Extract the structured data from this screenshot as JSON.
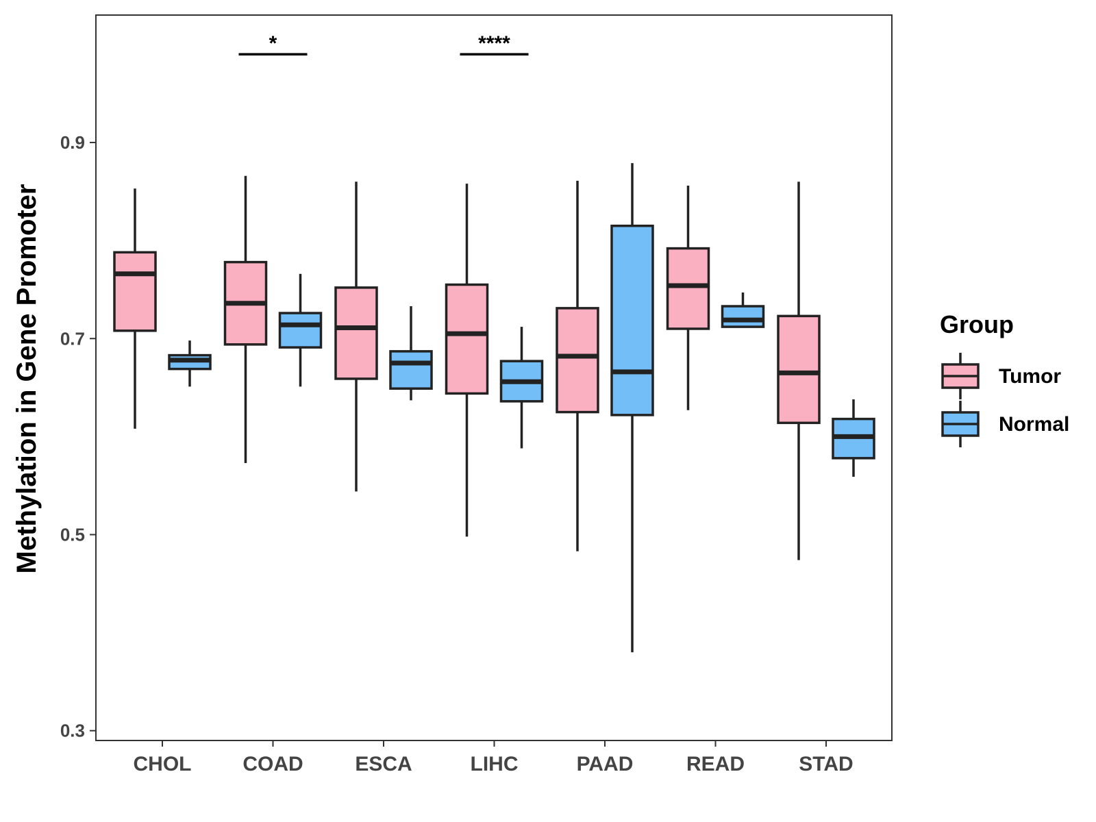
{
  "chart_data": {
    "type": "boxplot",
    "title": "",
    "xlabel": "",
    "ylabel": "Methylation in Gene Promoter",
    "ylim": [
      0.29,
      1.03
    ],
    "yticks": [
      0.3,
      0.5,
      0.7,
      0.9
    ],
    "ytick_labels": [
      "0.3",
      "0.5",
      "0.7",
      "0.9"
    ],
    "categories": [
      "CHOL",
      "COAD",
      "ESCA",
      "LIHC",
      "PAAD",
      "READ",
      "STAD"
    ],
    "legend": {
      "title": "Group",
      "position": "right",
      "entries": [
        {
          "name": "Tumor",
          "color": "#fbb0c1"
        },
        {
          "name": "Normal",
          "color": "#74bef7"
        }
      ]
    },
    "series": [
      {
        "name": "Tumor",
        "color": "#fbb0c1",
        "boxes": [
          {
            "min": 0.608,
            "q1": 0.708,
            "median": 0.766,
            "q3": 0.788,
            "max": 0.853
          },
          {
            "min": 0.573,
            "q1": 0.694,
            "median": 0.736,
            "q3": 0.778,
            "max": 0.866
          },
          {
            "min": 0.544,
            "q1": 0.659,
            "median": 0.711,
            "q3": 0.752,
            "max": 0.86
          },
          {
            "min": 0.498,
            "q1": 0.644,
            "median": 0.705,
            "q3": 0.755,
            "max": 0.858
          },
          {
            "min": 0.483,
            "q1": 0.625,
            "median": 0.682,
            "q3": 0.731,
            "max": 0.861
          },
          {
            "min": 0.627,
            "q1": 0.71,
            "median": 0.754,
            "q3": 0.792,
            "max": 0.856
          },
          {
            "min": 0.474,
            "q1": 0.614,
            "median": 0.665,
            "q3": 0.723,
            "max": 0.86
          }
        ]
      },
      {
        "name": "Normal",
        "color": "#74bef7",
        "boxes": [
          {
            "min": 0.651,
            "q1": 0.669,
            "median": 0.678,
            "q3": 0.683,
            "max": 0.698
          },
          {
            "min": 0.651,
            "q1": 0.691,
            "median": 0.714,
            "q3": 0.726,
            "max": 0.766
          },
          {
            "min": 0.637,
            "q1": 0.649,
            "median": 0.675,
            "q3": 0.687,
            "max": 0.733
          },
          {
            "min": 0.588,
            "q1": 0.636,
            "median": 0.656,
            "q3": 0.677,
            "max": 0.712
          },
          {
            "min": 0.38,
            "q1": 0.622,
            "median": 0.666,
            "q3": 0.815,
            "max": 0.879
          },
          {
            "min": 0.711,
            "q1": 0.712,
            "median": 0.719,
            "q3": 0.733,
            "max": 0.747
          },
          {
            "min": 0.559,
            "q1": 0.578,
            "median": 0.6,
            "q3": 0.618,
            "max": 0.638
          }
        ]
      }
    ],
    "significance": [
      {
        "category": "COAD",
        "label": "*",
        "y": 0.99
      },
      {
        "category": "LIHC",
        "label": "****",
        "y": 0.99
      }
    ]
  }
}
